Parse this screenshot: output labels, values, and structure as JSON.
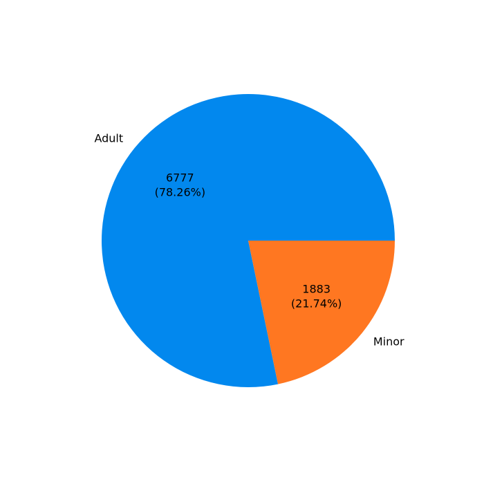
{
  "chart_data": {
    "type": "pie",
    "slices": [
      {
        "label": "Adult",
        "value": 6777,
        "percent_label": "(78.26%)",
        "color": "#0288ee"
      },
      {
        "label": "Minor",
        "value": 1883,
        "percent_label": "(21.74%)",
        "color": "#ff7721"
      }
    ]
  }
}
